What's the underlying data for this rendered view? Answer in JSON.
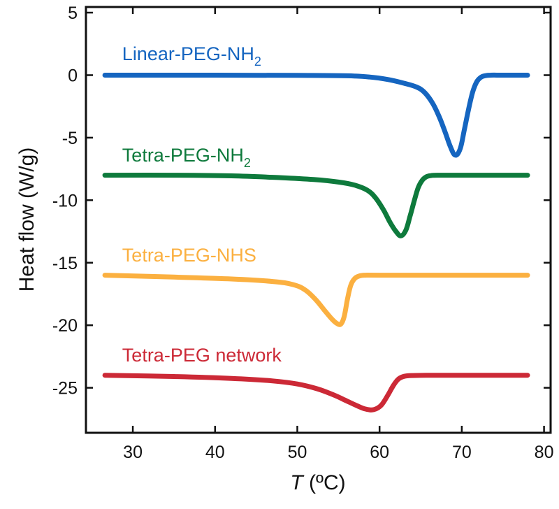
{
  "chart_data": {
    "type": "line",
    "title": "",
    "xlabel": "T (ºC)",
    "xlabel_italic_part": "T",
    "xlabel_rest": " (ºC)",
    "ylabel": "Heat flow (W/g)",
    "xlim": [
      24.3,
      80.8
    ],
    "ylim": [
      -28.6,
      5.45
    ],
    "xticks": [
      30,
      40,
      50,
      60,
      70,
      80
    ],
    "yticks": [
      5,
      0,
      -5,
      -10,
      -15,
      -20,
      -25
    ],
    "xtick_labels": [
      "30",
      "40",
      "50",
      "60",
      "70",
      "80"
    ],
    "ytick_labels": [
      "5",
      "0",
      "-5",
      "-10",
      "-15",
      "-20",
      "-25"
    ],
    "grid": false,
    "legend": "inline-labels",
    "series": [
      {
        "name": "Linear-PEG-NH2",
        "label_main": "Linear-PEG-NH",
        "label_sub": "2",
        "color": "#1565C0",
        "label_anchor": [
          28.7,
          1.2
        ],
        "x": [
          26.6,
          40,
          50,
          56,
          58.8,
          61,
          63,
          64.5,
          65.5,
          66.5,
          67.3,
          68,
          68.6,
          69.2,
          69.8,
          70.3,
          70.8,
          71.3,
          71.8,
          72.3,
          72.8,
          73.5,
          75,
          78
        ],
        "y": [
          0,
          0,
          -0.02,
          -0.05,
          -0.15,
          -0.35,
          -0.65,
          -0.95,
          -1.4,
          -2.3,
          -3.4,
          -4.6,
          -5.7,
          -6.4,
          -5.9,
          -4.4,
          -2.8,
          -1.4,
          -0.55,
          -0.18,
          -0.05,
          0,
          0,
          0
        ]
      },
      {
        "name": "Tetra-PEG-NH2",
        "label_main": "Tetra-PEG-NH",
        "label_sub": "2",
        "color": "#0E7A3C",
        "label_anchor": [
          28.7,
          -6.9
        ],
        "x": [
          26.6,
          35,
          42,
          48,
          52,
          55,
          57,
          58.5,
          59.5,
          60.5,
          61.3,
          62,
          62.6,
          63.2,
          63.7,
          64.2,
          64.7,
          65.2,
          65.7,
          66.3,
          67,
          70,
          78
        ],
        "y": [
          -8,
          -8,
          -8.05,
          -8.2,
          -8.35,
          -8.55,
          -8.8,
          -9.2,
          -9.8,
          -10.8,
          -11.8,
          -12.5,
          -12.85,
          -12.4,
          -11.3,
          -10.1,
          -9.0,
          -8.4,
          -8.12,
          -8.03,
          -8,
          -8,
          -8
        ]
      },
      {
        "name": "Tetra-PEG-NHS",
        "label_main": "Tetra-PEG-NHS",
        "label_sub": "",
        "color": "#FBB040",
        "label_anchor": [
          28.7,
          -14.9
        ],
        "x": [
          26.6,
          35,
          42,
          47,
          49.5,
          51,
          52.3,
          53.3,
          54.2,
          54.8,
          55.3,
          55.7,
          56.1,
          56.5,
          57,
          57.6,
          58.3,
          60,
          70,
          78
        ],
        "y": [
          -16,
          -16.15,
          -16.3,
          -16.5,
          -16.75,
          -17.2,
          -18.0,
          -18.8,
          -19.5,
          -19.85,
          -19.9,
          -19.3,
          -17.9,
          -16.8,
          -16.25,
          -16.05,
          -16,
          -16,
          -16,
          -16
        ],
        "label_sub_note": ""
      },
      {
        "name": "Tetra-PEG network",
        "label_main": "Tetra-PEG network",
        "label_sub": "",
        "color": "#CC2936",
        "label_anchor": [
          28.7,
          -22.9
        ],
        "x": [
          26.6,
          35,
          42,
          47,
          50,
          52.5,
          54.5,
          56,
          57.3,
          58.3,
          59.3,
          60.2,
          61,
          61.7,
          62.3,
          63,
          64,
          66,
          70,
          78
        ],
        "y": [
          -24,
          -24.1,
          -24.25,
          -24.45,
          -24.7,
          -25.1,
          -25.6,
          -26.05,
          -26.45,
          -26.7,
          -26.75,
          -26.4,
          -25.6,
          -24.8,
          -24.3,
          -24.08,
          -24.02,
          -24,
          -24,
          -24
        ]
      }
    ]
  }
}
